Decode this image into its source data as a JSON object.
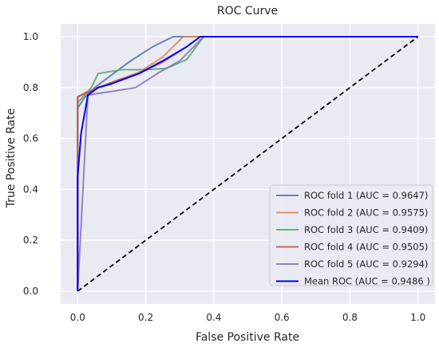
{
  "chart_data": {
    "type": "line",
    "title": "ROC Curve",
    "xlabel": "False Positive Rate",
    "ylabel": "True Positive Rate",
    "xlim": [
      -0.05,
      1.05
    ],
    "ylim": [
      -0.05,
      1.05
    ],
    "xticks": [
      0.0,
      0.2,
      0.4,
      0.6,
      0.8,
      1.0
    ],
    "xtick_labels": [
      "0.0",
      "0.2",
      "0.4",
      "0.6",
      "0.8",
      "1.0"
    ],
    "yticks": [
      0.0,
      0.2,
      0.4,
      0.6,
      0.8,
      1.0
    ],
    "ytick_labels": [
      "0.0",
      "0.2",
      "0.4",
      "0.6",
      "0.8",
      "1.0"
    ],
    "grid": true,
    "legend_position": "lower-right",
    "series": [
      {
        "name": "ROC fold 1 (AUC = 0.9647)",
        "color": "#4c72b0",
        "x": [
          0.0,
          0.0,
          0.02,
          0.05,
          0.1,
          0.15,
          0.22,
          0.28,
          1.0
        ],
        "y": [
          0.0,
          0.72,
          0.76,
          0.8,
          0.85,
          0.9,
          0.96,
          1.0,
          1.0
        ]
      },
      {
        "name": "ROC fold 2 (AUC = 0.9575)",
        "color": "#dd8452",
        "x": [
          0.0,
          0.0,
          0.02,
          0.06,
          0.12,
          0.18,
          0.25,
          0.31,
          1.0
        ],
        "y": [
          0.0,
          0.76,
          0.78,
          0.8,
          0.83,
          0.86,
          0.92,
          1.0,
          1.0
        ]
      },
      {
        "name": "ROC fold 3 (AUC = 0.9409)",
        "color": "#55a868",
        "x": [
          0.0,
          0.0,
          0.02,
          0.04,
          0.06,
          0.13,
          0.2,
          0.26,
          0.32,
          0.37,
          1.0
        ],
        "y": [
          0.0,
          0.74,
          0.77,
          0.8,
          0.855,
          0.87,
          0.87,
          0.875,
          0.91,
          1.0,
          1.0
        ]
      },
      {
        "name": "ROC fold 4 (AUC = 0.9505)",
        "color": "#c44e52",
        "x": [
          0.0,
          0.0,
          0.02,
          0.06,
          0.12,
          0.18,
          0.25,
          0.32,
          0.36,
          1.0
        ],
        "y": [
          0.0,
          0.765,
          0.775,
          0.8,
          0.83,
          0.855,
          0.9,
          0.96,
          1.0,
          1.0
        ]
      },
      {
        "name": "ROC fold 5 (AUC = 0.9294)",
        "color": "#8172b3",
        "x": [
          0.0,
          0.03,
          0.05,
          0.1,
          0.17,
          0.24,
          0.3,
          0.37,
          1.0
        ],
        "y": [
          0.0,
          0.77,
          0.775,
          0.785,
          0.8,
          0.86,
          0.905,
          1.0,
          1.0
        ]
      },
      {
        "name": "Mean ROC (AUC = 0.9486 )",
        "color": "#0000ff",
        "x": [
          0.0,
          0.0,
          0.01,
          0.03,
          0.06,
          0.1,
          0.18,
          0.25,
          0.32,
          0.36,
          1.0
        ],
        "y": [
          0.0,
          0.45,
          0.62,
          0.77,
          0.8,
          0.815,
          0.855,
          0.905,
          0.96,
          1.0,
          1.0
        ]
      }
    ],
    "reference_line": {
      "x": [
        0.0,
        1.0
      ],
      "y": [
        0.0,
        1.0
      ],
      "color": "#000000",
      "style": "dashed"
    }
  }
}
